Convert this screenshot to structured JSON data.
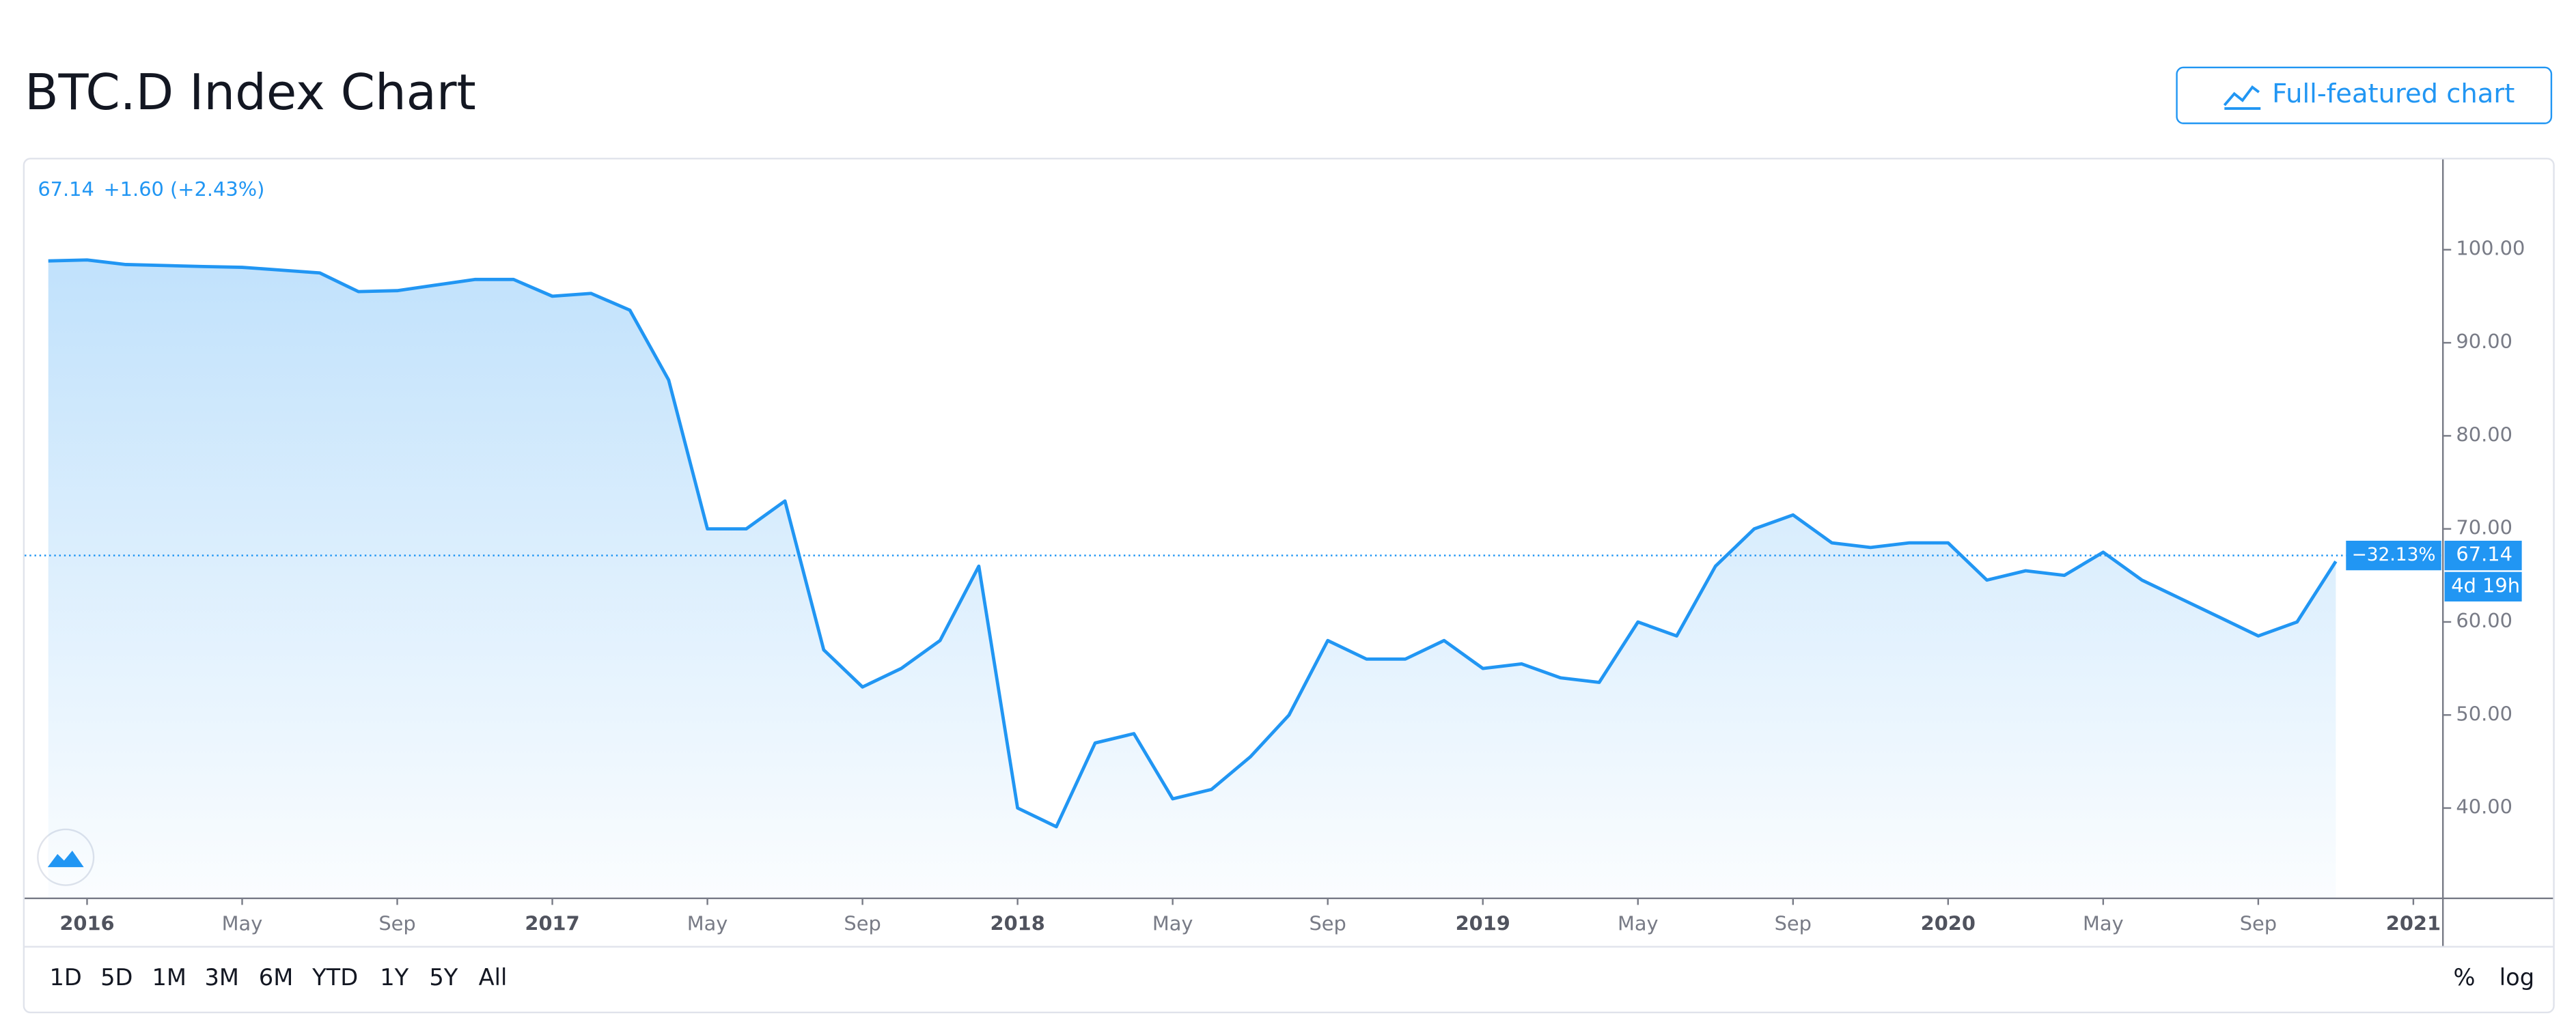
{
  "chart_data": {
    "type": "area",
    "title": "BTC.D Index Chart",
    "button": "Full-featured chart",
    "last_value": 67.14,
    "change": "+1.60 (+2.43%)",
    "percent_change": "−32.13%",
    "countdown": "4d 19h",
    "ranges": [
      "1D",
      "5D",
      "1M",
      "3M",
      "6M",
      "YTD",
      "1Y",
      "5Y",
      "All"
    ],
    "scale_buttons": [
      "%",
      "log"
    ],
    "x": [
      "2015-12",
      "2016-01",
      "2016-02",
      "2016-03",
      "2016-04",
      "2016-05",
      "2016-06",
      "2016-07",
      "2016-08",
      "2016-09",
      "2016-10",
      "2016-11",
      "2016-12",
      "2017-01",
      "2017-02",
      "2017-03",
      "2017-04",
      "2017-05",
      "2017-06",
      "2017-07",
      "2017-08",
      "2017-09",
      "2017-10",
      "2017-11",
      "2017-12",
      "2018-01",
      "2018-02",
      "2018-03",
      "2018-04",
      "2018-05",
      "2018-06",
      "2018-07",
      "2018-08",
      "2018-09",
      "2018-10",
      "2018-11",
      "2018-12",
      "2019-01",
      "2019-02",
      "2019-03",
      "2019-04",
      "2019-05",
      "2019-06",
      "2019-07",
      "2019-08",
      "2019-09",
      "2019-10",
      "2019-11",
      "2019-12",
      "2020-01",
      "2020-02",
      "2020-03",
      "2020-04",
      "2020-05",
      "2020-06",
      "2020-07",
      "2020-08",
      "2020-09",
      "2020-10",
      "2020-11"
    ],
    "series": [
      {
        "name": "BTC.D",
        "color": "#2196f3",
        "values": [
          98.8,
          98.9,
          98.4,
          98.3,
          98.2,
          98.1,
          97.8,
          97.5,
          95.5,
          95.6,
          96.2,
          96.8,
          96.8,
          95.0,
          95.3,
          93.5,
          86,
          70,
          70,
          73,
          57,
          53,
          55,
          58,
          66,
          40,
          38,
          47,
          48,
          41,
          42,
          45.5,
          50,
          58,
          56,
          56,
          58,
          55,
          55.5,
          54,
          53.5,
          60,
          58.5,
          66,
          70,
          71.5,
          68.5,
          68,
          68.5,
          68.5,
          64.5,
          65.5,
          65,
          67.5,
          64.5,
          62.5,
          60.5,
          58.5,
          60,
          66.5
        ]
      }
    ],
    "ylim": [
      30,
      110
    ],
    "yticks": [
      {
        "value": 40,
        "label": "40.00"
      },
      {
        "value": 50,
        "label": "50.00"
      },
      {
        "value": 60,
        "label": "60.00"
      },
      {
        "value": 70,
        "label": "70.00"
      },
      {
        "value": 80,
        "label": "80.00"
      },
      {
        "value": 90,
        "label": "90.00"
      },
      {
        "value": 100,
        "label": "100.00"
      }
    ],
    "xticks": [
      {
        "value": "2016-01",
        "label": "2016"
      },
      {
        "value": "2016-05",
        "label": "May"
      },
      {
        "value": "2016-09",
        "label": "Sep"
      },
      {
        "value": "2017-01",
        "label": "2017"
      },
      {
        "value": "2017-05",
        "label": "May"
      },
      {
        "value": "2017-09",
        "label": "Sep"
      },
      {
        "value": "2018-01",
        "label": "2018"
      },
      {
        "value": "2018-05",
        "label": "May"
      },
      {
        "value": "2018-09",
        "label": "Sep"
      },
      {
        "value": "2019-01",
        "label": "2019"
      },
      {
        "value": "2019-05",
        "label": "May"
      },
      {
        "value": "2019-09",
        "label": "Sep"
      },
      {
        "value": "2020-01",
        "label": "2020"
      },
      {
        "value": "2020-05",
        "label": "May"
      },
      {
        "value": "2020-09",
        "label": "Sep"
      },
      {
        "value": "2021-01",
        "label": "2021"
      }
    ]
  }
}
